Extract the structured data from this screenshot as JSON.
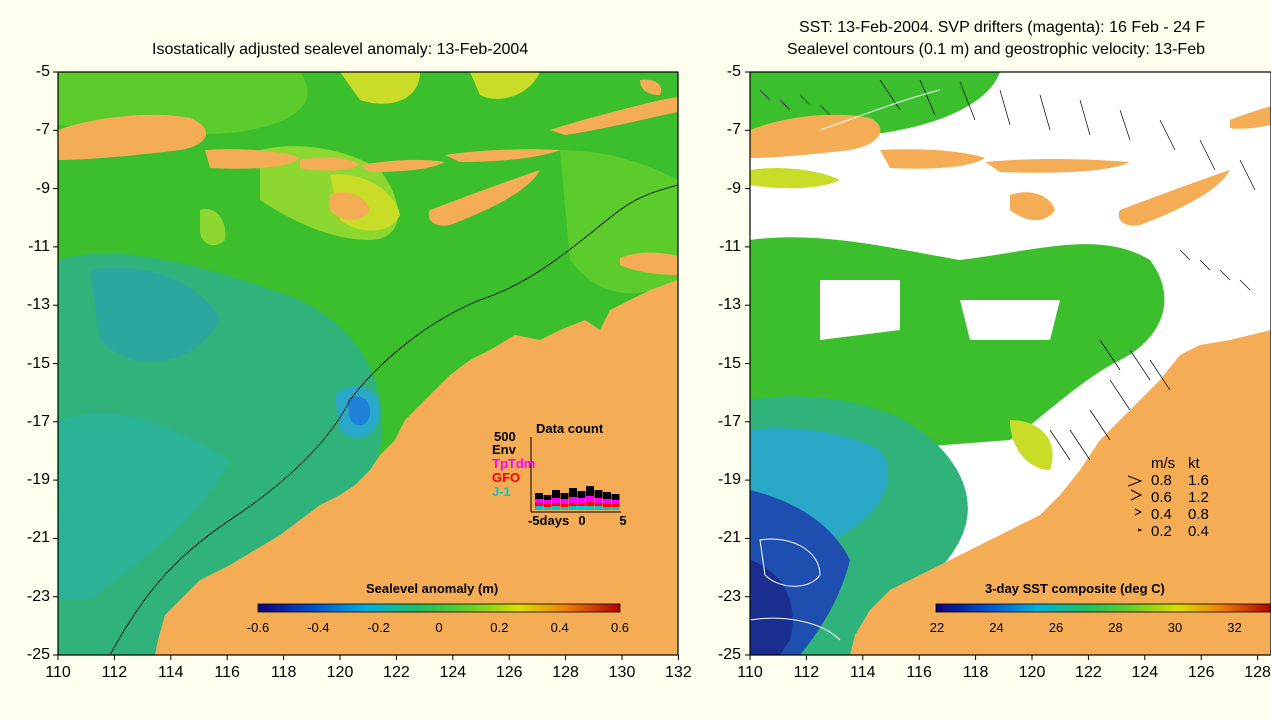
{
  "left_panel": {
    "title": "Isostatically adjusted sealevel anomaly: 13-Feb-2004",
    "colorbar_title": "Sealevel anomaly (m)",
    "colorbar_ticks": [
      "-0.6",
      "-0.4",
      "-0.2",
      "0",
      "0.2",
      "0.4",
      "0.6"
    ],
    "data_count": {
      "title": "Data count",
      "scale_label": "500",
      "legend": [
        {
          "label": "Env",
          "color": "#000000"
        },
        {
          "label": "TpTdm",
          "color": "#ff00ff"
        },
        {
          "label": "GFO",
          "color": "#ff0000"
        },
        {
          "label": "J-1",
          "color": "#00c8c8"
        }
      ],
      "x_ticks": [
        "-5days",
        "0",
        "5"
      ]
    }
  },
  "right_panel": {
    "title_line1": "SST: 13-Feb-2004. SVP drifters (magenta): 16 Feb - 24 F",
    "title_line2": "Sealevel contours (0.1 m) and geostrophic velocity: 13-Feb",
    "colorbar_title": "3-day SST composite (deg C)",
    "colorbar_ticks": [
      "22",
      "24",
      "26",
      "28",
      "30",
      "32"
    ],
    "velocity_legend": {
      "header_ms": "m/s",
      "header_kt": "kt",
      "rows": [
        {
          "ms": "0.8",
          "kt": "1.6"
        },
        {
          "ms": "0.6",
          "kt": "1.2"
        },
        {
          "ms": "0.4",
          "kt": "0.8"
        },
        {
          "ms": "0.2",
          "kt": "0.4"
        }
      ]
    }
  },
  "y_ticks": [
    "-5",
    "-7",
    "-9",
    "-11",
    "-13",
    "-15",
    "-17",
    "-19",
    "-21",
    "-23",
    "-25"
  ],
  "left_x_ticks": [
    "110",
    "112",
    "114",
    "116",
    "118",
    "120",
    "122",
    "124",
    "126",
    "128",
    "130",
    "132"
  ],
  "right_x_ticks": [
    "110",
    "112",
    "114",
    "116",
    "118",
    "120",
    "122",
    "124",
    "126",
    "128"
  ],
  "colors": {
    "land": "#f5ad55",
    "ocean_green": "#3cbf2c",
    "ocean_teal": "#2fb37a",
    "ocean_cyan": "#29a8c8",
    "sst_blue": "#1e4fb0",
    "background": "#fffff0"
  }
}
